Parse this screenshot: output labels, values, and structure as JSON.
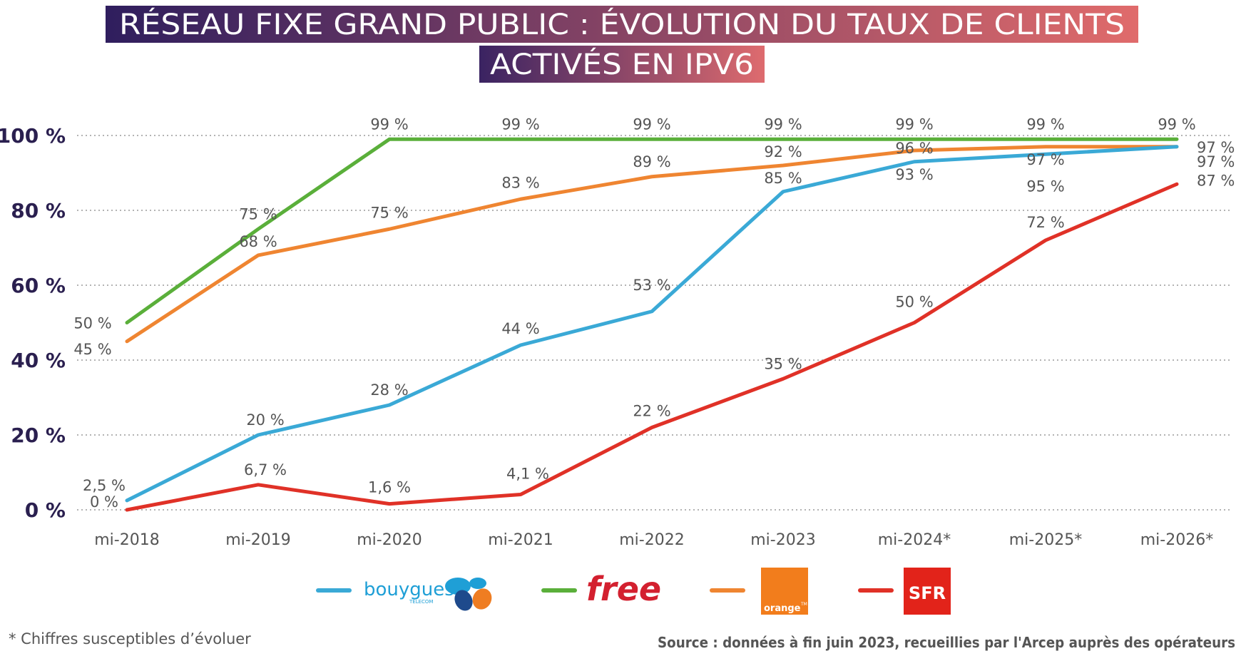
{
  "title": {
    "line1": "RÉSEAU FIXE GRAND PUBLIC : ÉVOLUTION DU TAUX DE CLIENTS",
    "line2": "ACTIVÉS EN IPV6"
  },
  "footnote": "* Chiffres susceptibles d’évoluer",
  "source": "Source : données à fin juin 2023, recueillies par l'Arcep auprès des opérateurs",
  "colors": {
    "bouygues": "#3aa9d6",
    "free": "#5aaf3a",
    "orange": "#ef8531",
    "sfr": "#e03127",
    "title_start": "#2f1e5e",
    "title_end": "#e06b6b"
  },
  "legend": {
    "bouygues": {
      "logo_text": "bouygues",
      "logo_subtext": "TELECOM",
      "icon": "bouygues-logo"
    },
    "free": {
      "logo_text": "free",
      "icon": "free-logo"
    },
    "orange": {
      "logo_text": "orange",
      "logo_tm": "TM",
      "icon": "orange-logo"
    },
    "sfr": {
      "logo_text": "SFR",
      "icon": "sfr-logo"
    }
  },
  "chart_data": {
    "type": "line",
    "categories": [
      "mi-2018",
      "mi-2019",
      "mi-2020",
      "mi-2021",
      "mi-2022",
      "mi-2023",
      "mi-2024*",
      "mi-2025*",
      "mi-2026*"
    ],
    "ylim": [
      0,
      100
    ],
    "yticks": [
      {
        "value": 0,
        "label": "0 %"
      },
      {
        "value": 20,
        "label": "20 %"
      },
      {
        "value": 40,
        "label": "40 %"
      },
      {
        "value": 60,
        "label": "60 %"
      },
      {
        "value": 80,
        "label": "80 %"
      },
      {
        "value": 100,
        "label": "100 %"
      }
    ],
    "grid": true,
    "series": [
      {
        "key": "free",
        "values": [
          50,
          75,
          99,
          99,
          99,
          99,
          99,
          99,
          99
        ],
        "labels": [
          "50 %",
          "75 %",
          "99 %",
          "99 %",
          "99 %",
          "99 %",
          "99 %",
          "99 %",
          "99 %"
        ]
      },
      {
        "key": "orange",
        "values": [
          45,
          68,
          75,
          83,
          89,
          92,
          96,
          97,
          97
        ],
        "labels": [
          "45 %",
          "68 %",
          "75 %",
          "83 %",
          "89 %",
          "92 %",
          "96 %",
          "97 %",
          "97 %"
        ]
      },
      {
        "key": "bouygues",
        "values": [
          2.5,
          20,
          28,
          44,
          53,
          85,
          93,
          95,
          97
        ],
        "labels": [
          "2,5 %",
          "20 %",
          "28 %",
          "44 %",
          "53 %",
          "85 %",
          "93 %",
          "95 %",
          "97 %"
        ]
      },
      {
        "key": "sfr",
        "values": [
          0,
          6.7,
          1.6,
          4.1,
          22,
          35,
          50,
          72,
          87
        ],
        "labels": [
          "0 %",
          "6,7 %",
          "1,6 %",
          "4,1 %",
          "22 %",
          "35 %",
          "50 %",
          "72 %",
          "87 %"
        ]
      }
    ]
  }
}
